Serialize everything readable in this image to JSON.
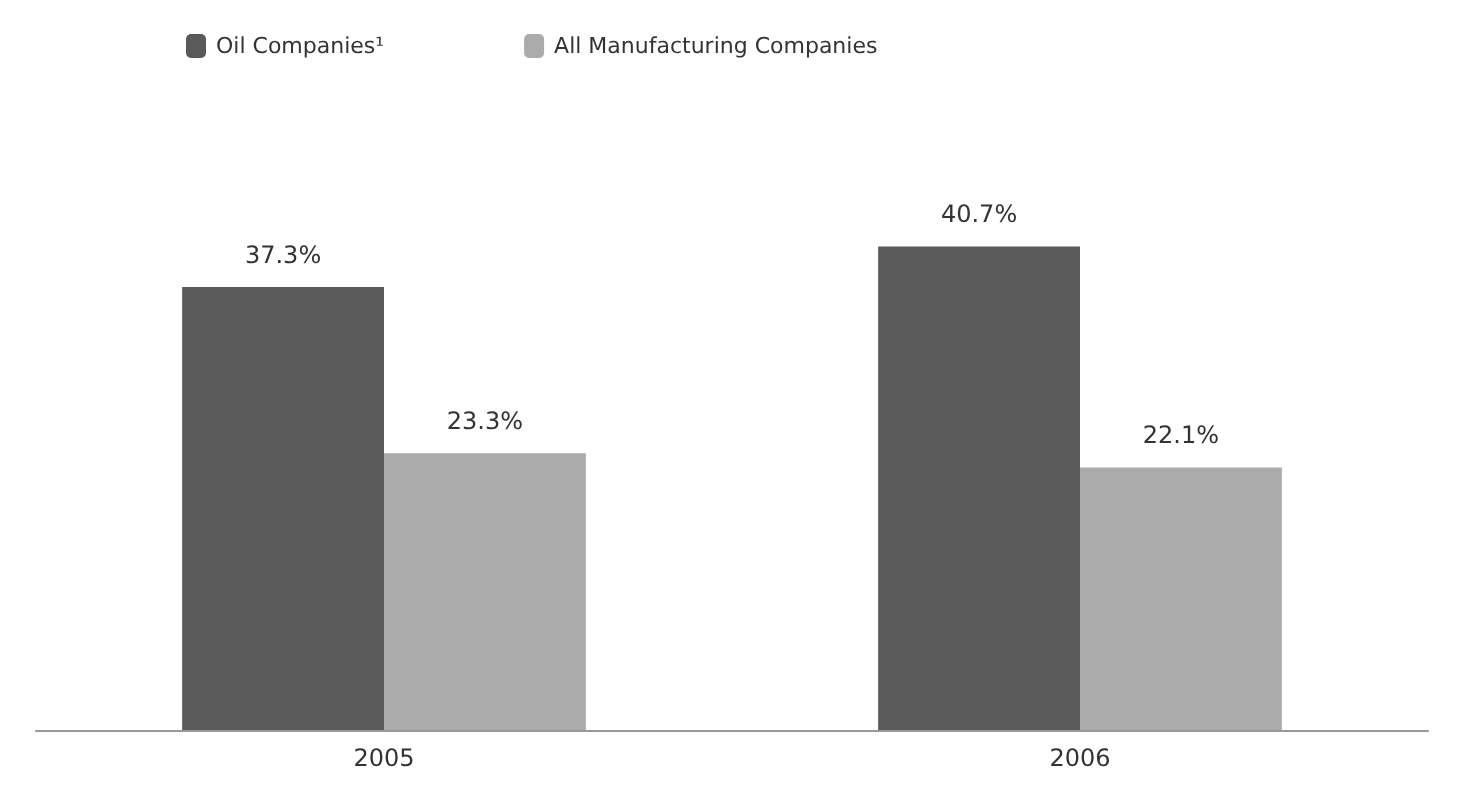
{
  "chart_data": {
    "type": "bar",
    "categories": [
      "2005",
      "2006"
    ],
    "series": [
      {
        "name": "Oil Companies¹",
        "color": "#5a5a5a",
        "values": [
          37.3,
          40.7
        ],
        "value_labels": [
          "37.3%",
          "40.7%"
        ]
      },
      {
        "name": "All Manufacturing Companies",
        "color": "#ababab",
        "values": [
          23.3,
          22.1
        ],
        "value_labels": [
          "23.3%",
          "22.1%"
        ]
      }
    ],
    "legend": "top left",
    "grid": false,
    "tick_labels": "x"
  }
}
